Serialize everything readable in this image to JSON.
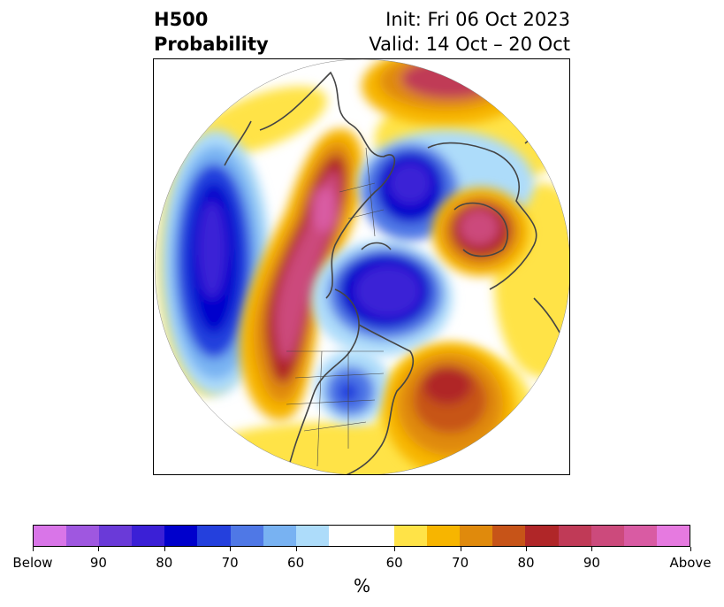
{
  "title": {
    "left_line1": "H500",
    "left_line2": "Probability",
    "init": "Init: Fri 06 Oct 2023",
    "valid": "Valid: 14 Oct – 20 Oct"
  },
  "map": {
    "projection": "north-polar-stereographic",
    "region": "Northern Hemisphere (North America, Pacific, Arctic, Europe)"
  },
  "colorbar": {
    "colors": [
      "#d975e8",
      "#9f57e0",
      "#6a3ad8",
      "#3b20d6",
      "#0000cc",
      "#2440dd",
      "#4f78e6",
      "#78b2f2",
      "#addcfa",
      "#ffffff",
      "#ffffff",
      "#ffe347",
      "#f7b500",
      "#e08a0c",
      "#c75418",
      "#b02628",
      "#c03a57",
      "#cc4a7c",
      "#d95ba3",
      "#e67ae0"
    ],
    "tick_labels": [
      "Below",
      "90",
      "80",
      "70",
      "60",
      "60",
      "70",
      "80",
      "90",
      "Above"
    ],
    "unit": "%"
  }
}
